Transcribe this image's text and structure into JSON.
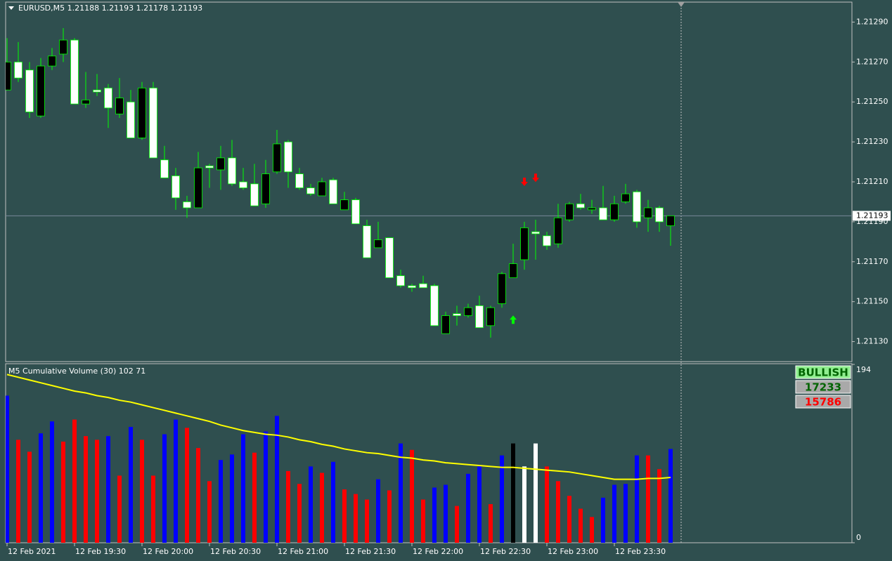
{
  "chart_data": [
    {
      "type": "candlestick",
      "title": "EURUSD,M5  1.21188 1.21193 1.21178 1.21193",
      "categories": [
        "12 Feb 2021",
        null,
        null,
        null,
        null,
        null,
        "12 Feb 19:30",
        null,
        null,
        null,
        null,
        null,
        "12 Feb 20:00",
        null,
        null,
        null,
        null,
        null,
        "12 Feb 20:30",
        null,
        null,
        null,
        null,
        null,
        "12 Feb 21:00",
        null,
        null,
        null,
        null,
        null,
        "12 Feb 21:30",
        null,
        null,
        null,
        null,
        null,
        "12 Feb 22:00",
        null,
        null,
        null,
        null,
        null,
        "12 Feb 22:30",
        null,
        null,
        null,
        null,
        null,
        "12 Feb 23:00",
        null,
        null,
        null,
        null,
        null,
        "12 Feb 23:30",
        null,
        null,
        null,
        null,
        null
      ],
      "open": [
        1.21256,
        1.2127,
        1.21266,
        1.21243,
        1.21268,
        1.21274,
        1.21281,
        1.21249,
        1.21256,
        1.21257,
        1.21244,
        1.2125,
        1.21232,
        1.21257,
        1.21221,
        1.21213,
        1.212,
        1.21197,
        1.21218,
        1.21216,
        1.21222,
        1.2121,
        1.21209,
        1.21199,
        1.21215,
        1.2123,
        1.21214,
        1.21207,
        1.21203,
        1.21211,
        1.21196,
        1.21201,
        1.21188,
        1.21177,
        1.21182,
        1.21163,
        1.21158,
        1.21159,
        1.21158,
        1.21134,
        1.21144,
        1.21143,
        1.21148,
        1.21138,
        1.21149,
        1.21162,
        1.21171,
        1.21185,
        1.21183,
        1.21179,
        1.21191,
        1.21199,
        1.21196,
        1.21197,
        1.21191,
        1.212,
        1.21205,
        1.21192,
        1.21197,
        1.21188
      ],
      "high": [
        1.21282,
        1.2128,
        1.2127,
        1.21272,
        1.21277,
        1.21287,
        1.21282,
        1.21265,
        1.21264,
        1.21259,
        1.21262,
        1.21256,
        1.2126,
        1.2126,
        1.21228,
        1.21217,
        1.21203,
        1.21225,
        1.21219,
        1.21228,
        1.21231,
        1.21217,
        1.21219,
        1.21221,
        1.21236,
        1.21231,
        1.21217,
        1.21209,
        1.21212,
        1.21212,
        1.21205,
        1.21202,
        1.21191,
        1.2119,
        1.21182,
        1.21166,
        1.21159,
        1.21163,
        1.21159,
        1.21145,
        1.21148,
        1.21149,
        1.21153,
        1.21148,
        1.21165,
        1.21179,
        1.2119,
        1.21191,
        1.21185,
        1.21199,
        1.212,
        1.21204,
        1.21201,
        1.21208,
        1.21203,
        1.21209,
        1.21206,
        1.21201,
        1.21198,
        1.21193
      ],
      "low": [
        1.21256,
        1.2126,
        1.21242,
        1.21242,
        1.21266,
        1.2127,
        1.21249,
        1.21247,
        1.21253,
        1.21237,
        1.21242,
        1.21232,
        1.21231,
        1.21222,
        1.21212,
        1.21196,
        1.21192,
        1.21197,
        1.21207,
        1.21206,
        1.21208,
        1.21206,
        1.21198,
        1.21197,
        1.21214,
        1.21207,
        1.21206,
        1.21203,
        1.21203,
        1.21199,
        1.21196,
        1.21189,
        1.21172,
        1.21177,
        1.21162,
        1.21157,
        1.21155,
        1.21157,
        1.21138,
        1.21134,
        1.21138,
        1.21142,
        1.21137,
        1.21132,
        1.21147,
        1.21162,
        1.21166,
        1.21171,
        1.21176,
        1.21177,
        1.2119,
        1.21196,
        1.21194,
        1.21191,
        1.2119,
        1.21199,
        1.21187,
        1.21185,
        1.21185,
        1.21178
      ],
      "close": [
        1.2127,
        1.21262,
        1.21245,
        1.21268,
        1.21273,
        1.21281,
        1.21249,
        1.21251,
        1.21255,
        1.21247,
        1.21252,
        1.21232,
        1.21257,
        1.21222,
        1.21212,
        1.21202,
        1.21197,
        1.21217,
        1.21217,
        1.21222,
        1.21209,
        1.21207,
        1.21198,
        1.21214,
        1.21229,
        1.21215,
        1.21207,
        1.21204,
        1.2121,
        1.21199,
        1.21201,
        1.21189,
        1.21172,
        1.21181,
        1.21162,
        1.21158,
        1.21157,
        1.21157,
        1.21138,
        1.21143,
        1.21143,
        1.21147,
        1.21137,
        1.21147,
        1.21164,
        1.21169,
        1.21187,
        1.21184,
        1.21178,
        1.21192,
        1.21199,
        1.21197,
        1.21197,
        1.21191,
        1.21199,
        1.21204,
        1.2119,
        1.21197,
        1.2119,
        1.21193
      ],
      "up_color": "#000000",
      "down_color": "#ffffff",
      "wick_color": "#00ff00",
      "buy_signals": [
        null,
        null,
        null,
        null,
        null,
        null,
        null,
        null,
        null,
        null,
        null,
        null,
        null,
        null,
        null,
        null,
        null,
        null,
        null,
        null,
        null,
        null,
        null,
        null,
        null,
        null,
        null,
        null,
        null,
        null,
        null,
        null,
        null,
        null,
        null,
        null,
        null,
        null,
        null,
        null,
        null,
        null,
        null,
        null,
        null,
        1.21141,
        null,
        null,
        null,
        null,
        null,
        null,
        null,
        null,
        null,
        null,
        null,
        null,
        null,
        null
      ],
      "buy_color": "#00ff00",
      "sell_signals": [
        null,
        null,
        null,
        null,
        null,
        null,
        null,
        null,
        null,
        null,
        null,
        null,
        null,
        null,
        null,
        null,
        null,
        null,
        null,
        null,
        null,
        null,
        null,
        null,
        null,
        null,
        null,
        null,
        null,
        null,
        null,
        null,
        null,
        null,
        null,
        null,
        null,
        null,
        null,
        null,
        null,
        null,
        null,
        null,
        null,
        null,
        1.2121,
        1.21212,
        null,
        null,
        null,
        null,
        null,
        null,
        null,
        null,
        null,
        null,
        null,
        null
      ],
      "sell_color": "#ff0000",
      "last_price": 1.21193,
      "last_price_color": "#778899",
      "ylim": [
        1.2112,
        1.213
      ],
      "yticks": [
        {
          "value": 1.2113,
          "label": "1.21130"
        },
        {
          "value": 1.2115,
          "label": "1.21150"
        },
        {
          "value": 1.2117,
          "label": "1.21170"
        },
        {
          "value": 1.2119,
          "label": "1.21190"
        },
        {
          "value": 1.2121,
          "label": "1.21210"
        },
        {
          "value": 1.2123,
          "label": "1.21230"
        },
        {
          "value": 1.2125,
          "label": "1.21250"
        },
        {
          "value": 1.2127,
          "label": "1.21270"
        },
        {
          "value": 1.2129,
          "label": "1.21290"
        }
      ]
    },
    {
      "type": "bar",
      "title": "M5 Cumulative Volume (30) 102 71",
      "values": [
        160,
        112,
        99,
        119,
        132,
        110,
        134,
        116,
        112,
        116,
        73,
        126,
        112,
        73,
        118,
        134,
        125,
        103,
        67,
        90,
        96,
        118,
        98,
        121,
        138,
        78,
        64,
        83,
        76,
        88,
        58,
        53,
        47,
        69,
        57,
        108,
        101,
        47,
        60,
        63,
        40,
        75,
        83,
        42,
        95,
        108,
        83,
        108,
        83,
        67,
        51,
        37,
        28,
        49,
        63,
        64,
        95,
        95,
        80,
        102
      ],
      "colors": [
        "#0000ff",
        "#ff0000",
        "#ff0000",
        "#0000ff",
        "#0000ff",
        "#ff0000",
        "#ff0000",
        "#ff0000",
        "#ff0000",
        "#0000ff",
        "#ff0000",
        "#0000ff",
        "#ff0000",
        "#ff0000",
        "#0000ff",
        "#0000ff",
        "#ff0000",
        "#ff0000",
        "#ff0000",
        "#0000ff",
        "#0000ff",
        "#0000ff",
        "#ff0000",
        "#0000ff",
        "#0000ff",
        "#ff0000",
        "#ff0000",
        "#0000ff",
        "#ff0000",
        "#0000ff",
        "#ff0000",
        "#ff0000",
        "#ff0000",
        "#0000ff",
        "#ff0000",
        "#0000ff",
        "#ff0000",
        "#ff0000",
        "#0000ff",
        "#0000ff",
        "#ff0000",
        "#0000ff",
        "#0000ff",
        "#ff0000",
        "#0000ff",
        "#000000",
        "#ffffff",
        "#ffffff",
        "#ff0000",
        "#ff0000",
        "#ff0000",
        "#ff0000",
        "#ff0000",
        "#0000ff",
        "#0000ff",
        "#0000ff",
        "#0000ff",
        "#ff0000",
        "#ff0000",
        "#0000ff"
      ],
      "ma_color": "#ffff00",
      "ma_values": [
        183,
        180,
        177,
        174,
        171,
        168,
        165,
        163,
        160,
        158,
        155,
        153,
        150,
        147,
        144,
        141,
        138,
        135,
        132,
        128,
        125,
        122,
        120,
        118,
        117,
        115,
        112,
        110,
        107,
        105,
        102,
        100,
        98,
        97,
        95,
        93,
        92,
        90,
        89,
        87,
        86,
        85,
        84,
        83,
        82,
        82,
        81,
        80,
        79,
        78,
        77,
        75,
        73,
        71,
        69,
        69,
        69,
        70,
        70,
        71
      ],
      "ylim": [
        0,
        194
      ],
      "yticks": [
        0,
        194
      ],
      "status": "BULLISH",
      "buy_volume": 17233,
      "sell_volume": 15786
    }
  ]
}
